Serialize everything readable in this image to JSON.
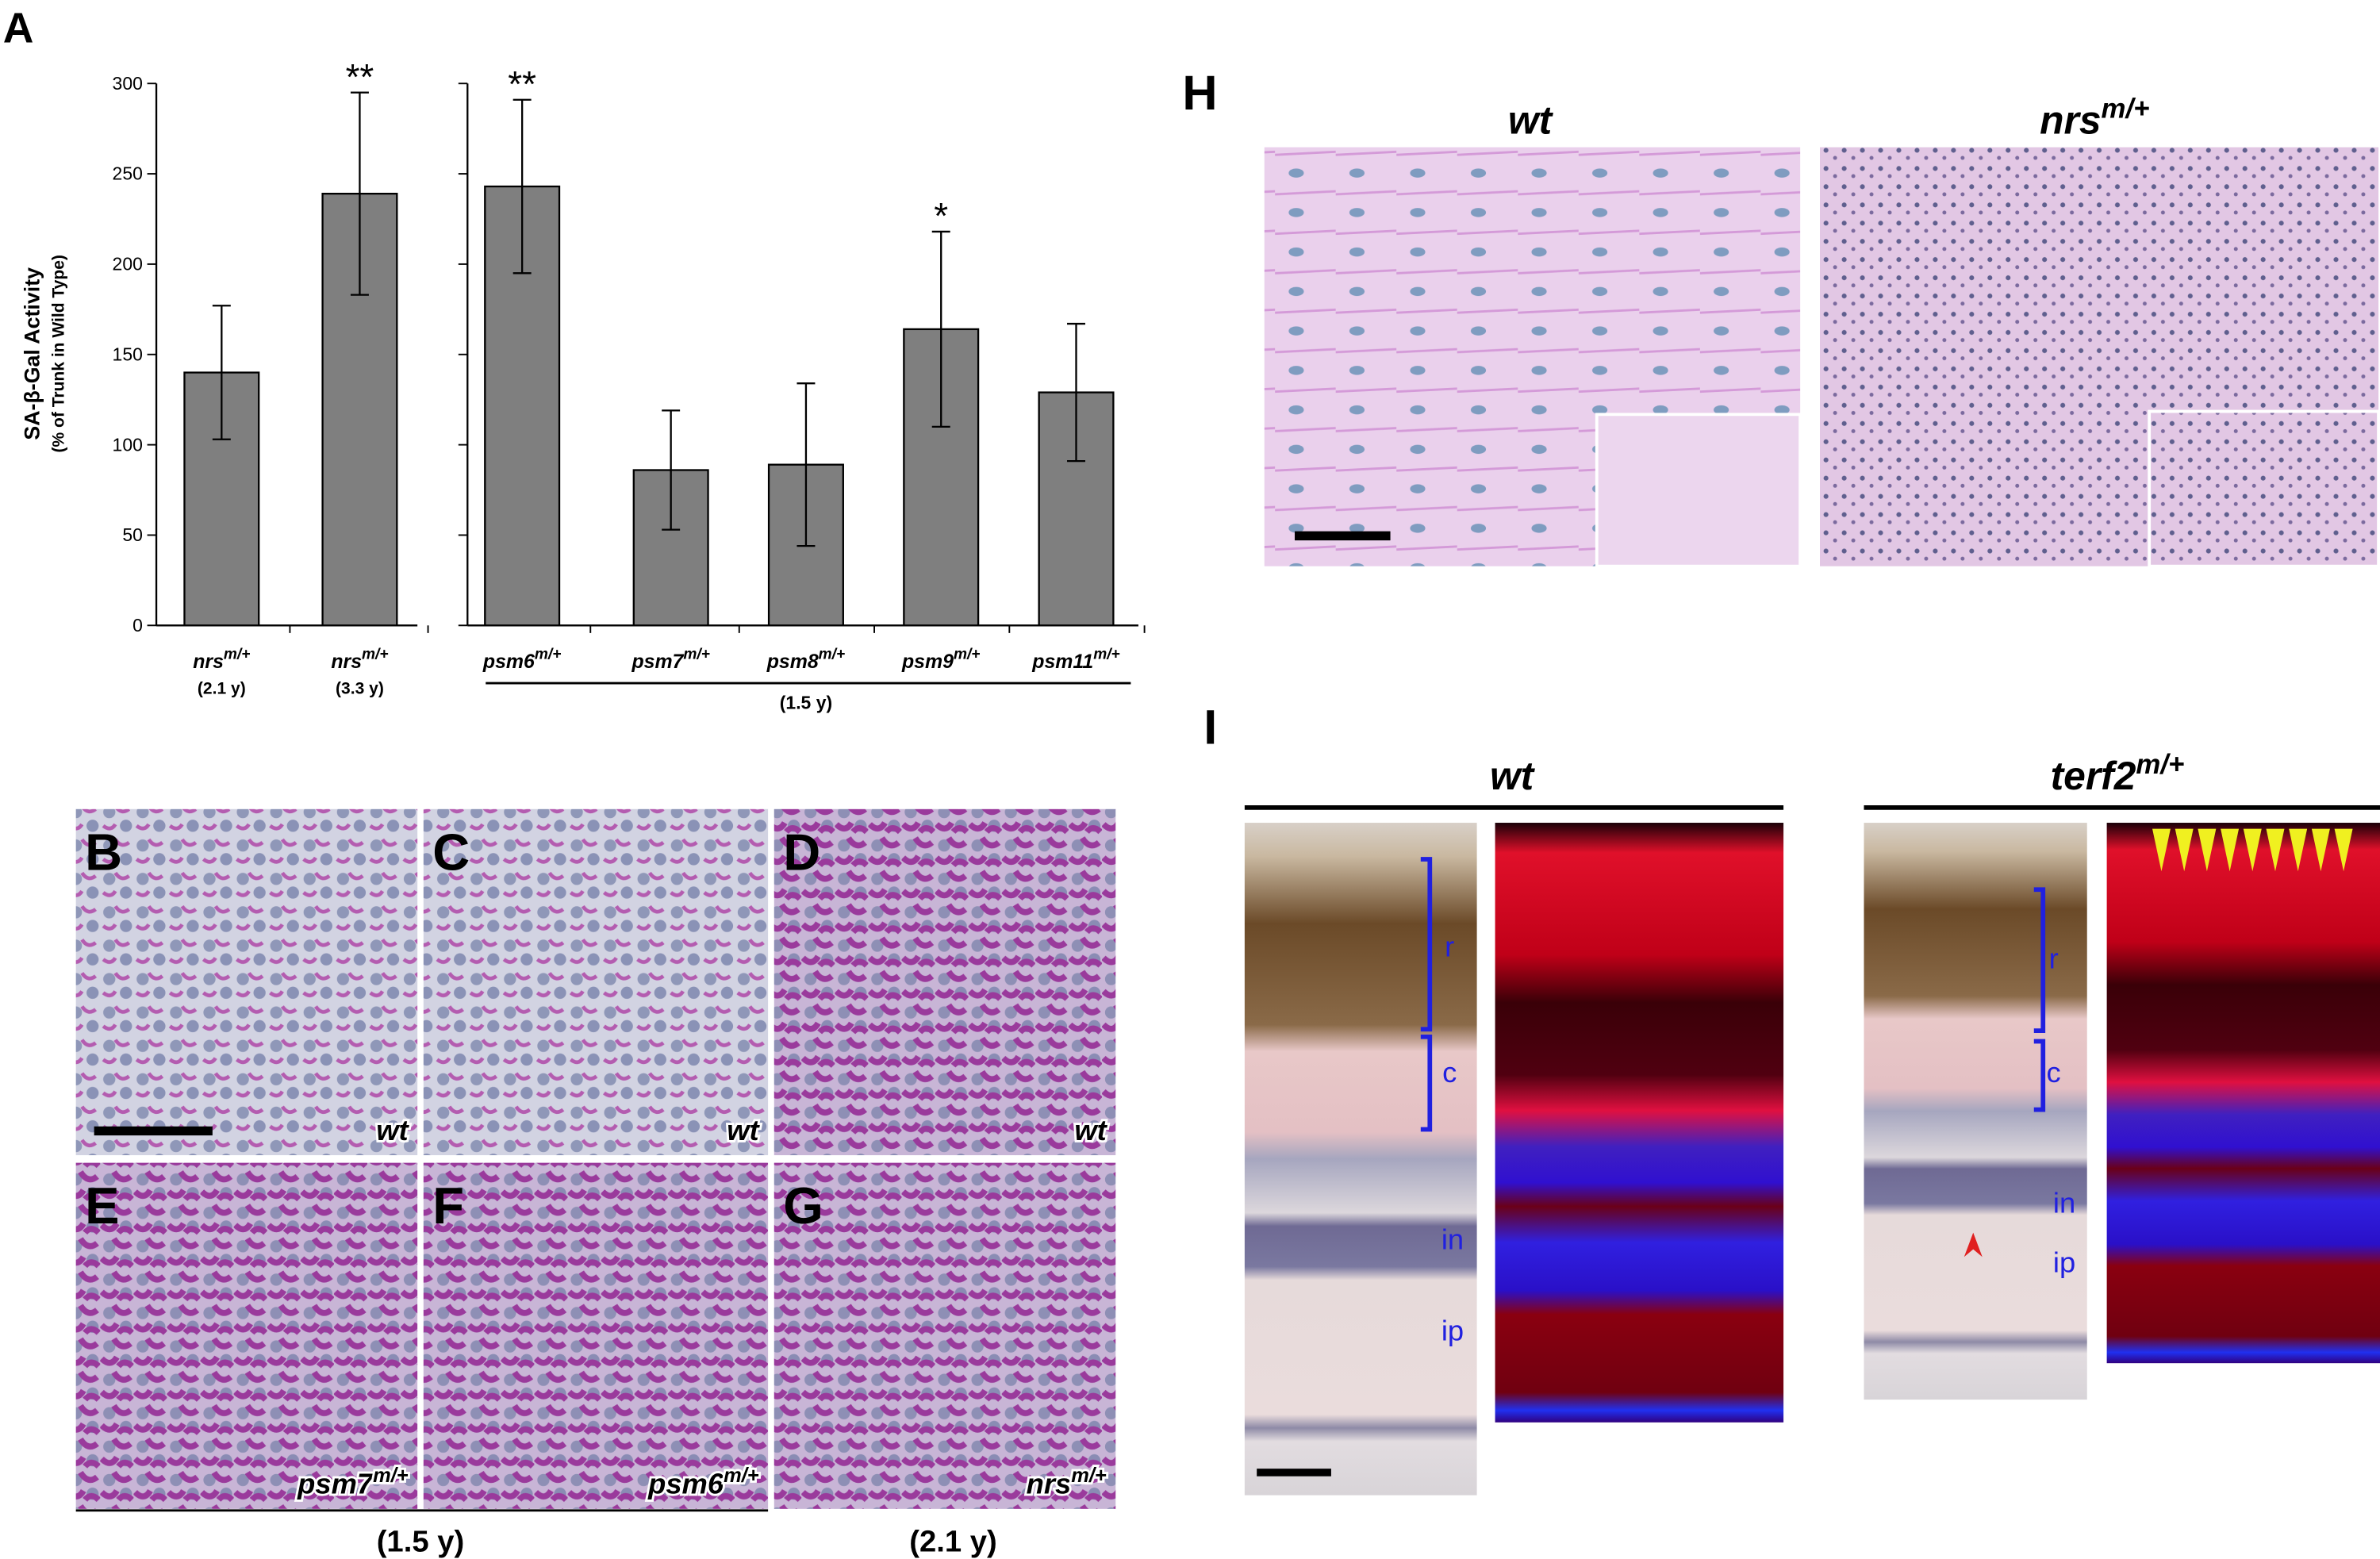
{
  "chart_data": {
    "type": "bar",
    "y_title": "SA-β-Gal Activity",
    "y_subtitle": "(% of Trunk in Wild Type)",
    "categories": [
      "nrs",
      "nrs",
      "psm6",
      "psm7",
      "psm8",
      "psm9",
      "psm11"
    ],
    "category_superscripts": [
      "m/+",
      "m/+",
      "m/+",
      "m/+",
      "m/+",
      "m/+",
      "m/+"
    ],
    "category_sublabels": [
      "(2.1 y)",
      "(3.3 y)",
      null,
      null,
      null,
      null,
      null
    ],
    "group_label": "(1.5 y)",
    "values": [
      140,
      239,
      243,
      86,
      89,
      164,
      129
    ],
    "errors": [
      37,
      56,
      48,
      33,
      45,
      54,
      38
    ],
    "significance": [
      "**",
      "**",
      "*"
    ],
    "significance_index": [
      1,
      2,
      5
    ],
    "color": "#7f7f7f",
    "ylim": [
      0,
      300
    ],
    "yticks": [
      0,
      50,
      100,
      150,
      200,
      250,
      300
    ]
  },
  "panel_letters": [
    "A",
    "B",
    "C",
    "D",
    "E",
    "F",
    "G",
    "H",
    "I"
  ],
  "micrographs": [
    {
      "genotype": "wt"
    },
    {
      "genotype": "wt"
    },
    {
      "genotype": "wt"
    },
    {
      "genotype": "psm7",
      "superscript": "m/+"
    },
    {
      "genotype": "psm6",
      "superscript": "m/+"
    },
    {
      "genotype": "nrs",
      "superscript": "m/+"
    }
  ],
  "micrograph_ages": [
    "(1.5 y)",
    "(2.1 y)"
  ],
  "panel_h": {
    "titles": [
      {
        "genotype": "wt"
      },
      {
        "genotype": "nrs",
        "superscript": "m/+"
      }
    ]
  },
  "panel_i": {
    "titles": [
      {
        "genotype": "wt"
      },
      {
        "genotype": "terf2",
        "superscript": "m/+"
      }
    ],
    "layers_left": [
      "r",
      "c",
      "in",
      "ip"
    ],
    "layers_right": [
      "r",
      "c",
      "in",
      "ip"
    ]
  }
}
